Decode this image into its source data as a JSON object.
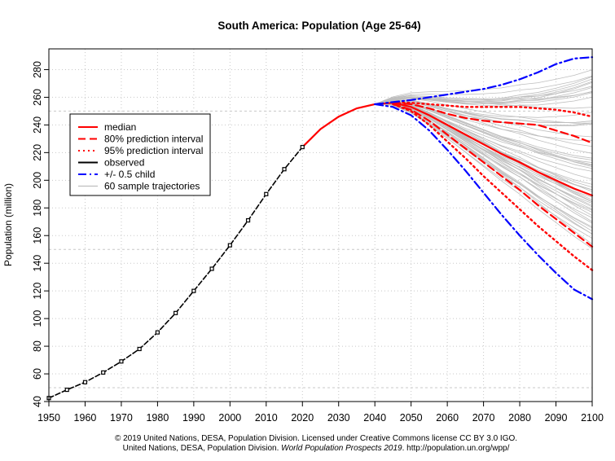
{
  "chart_data": {
    "type": "line",
    "title": "South America: Population (Age 25-64)",
    "xlabel": "",
    "ylabel": "Population (million)",
    "xlim": [
      1950,
      2100
    ],
    "ylim": [
      40,
      295
    ],
    "xticks": [
      1950,
      1960,
      1970,
      1980,
      1990,
      2000,
      2010,
      2020,
      2030,
      2040,
      2050,
      2060,
      2070,
      2080,
      2090,
      2100
    ],
    "yticks": [
      40,
      60,
      80,
      100,
      120,
      140,
      160,
      180,
      200,
      220,
      240,
      260,
      280
    ],
    "grid": true,
    "legend_position": "top-left",
    "legend": [
      {
        "label": "median",
        "color": "#ff0000",
        "dash": "solid"
      },
      {
        "label": "80% prediction interval",
        "color": "#ff0000",
        "dash": "dashed"
      },
      {
        "label": "95% prediction interval",
        "color": "#ff0000",
        "dash": "dotted"
      },
      {
        "label": "observed",
        "color": "#000000",
        "dash": "solid"
      },
      {
        "label": "+/- 0.5 child",
        "color": "#0000ff",
        "dash": "dashdot"
      },
      {
        "label": "60 sample trajectories",
        "color": "#bebebe",
        "dash": "solid"
      }
    ],
    "series": [
      {
        "name": "observed",
        "color": "#000000",
        "x": [
          1950,
          1955,
          1960,
          1965,
          1970,
          1975,
          1980,
          1985,
          1990,
          1995,
          2000,
          2005,
          2010,
          2015,
          2020
        ],
        "values": [
          42.5,
          48.5,
          54,
          61,
          69,
          78,
          90,
          104,
          120,
          136,
          153,
          171,
          190,
          208,
          224
        ]
      },
      {
        "name": "median",
        "color": "#ff0000",
        "x": [
          2020,
          2025,
          2030,
          2035,
          2040,
          2045,
          2050,
          2055,
          2060,
          2065,
          2070,
          2075,
          2080,
          2085,
          2090,
          2095,
          2100
        ],
        "values": [
          224,
          237,
          246,
          252,
          255,
          256,
          253,
          247,
          240,
          233,
          226,
          219,
          213,
          206,
          200,
          194,
          189
        ]
      },
      {
        "name": "80% upper",
        "color": "#ff0000",
        "x": [
          2045,
          2050,
          2055,
          2060,
          2065,
          2070,
          2075,
          2080,
          2085,
          2090,
          2095,
          2100
        ],
        "values": [
          256,
          255,
          252,
          248,
          245,
          243,
          242,
          241,
          240,
          236,
          232,
          227
        ]
      },
      {
        "name": "80% lower",
        "color": "#ff0000",
        "x": [
          2045,
          2050,
          2055,
          2060,
          2065,
          2070,
          2075,
          2080,
          2085,
          2090,
          2095,
          2100
        ],
        "values": [
          255,
          251,
          243,
          233,
          223,
          213,
          203,
          193,
          182,
          172,
          162,
          152
        ]
      },
      {
        "name": "95% upper",
        "color": "#ff0000",
        "x": [
          2045,
          2050,
          2055,
          2060,
          2065,
          2070,
          2075,
          2080,
          2085,
          2090,
          2095,
          2100
        ],
        "values": [
          256,
          256,
          255,
          254,
          253,
          253,
          253,
          253,
          252,
          251,
          249,
          246
        ]
      },
      {
        "name": "95% lower",
        "color": "#ff0000",
        "x": [
          2045,
          2050,
          2055,
          2060,
          2065,
          2070,
          2075,
          2080,
          2085,
          2090,
          2095,
          2100
        ],
        "values": [
          255,
          250,
          240,
          228,
          216,
          203,
          191,
          179,
          167,
          156,
          145,
          135
        ]
      },
      {
        "name": "+0.5 child",
        "color": "#0000ff",
        "x": [
          2040,
          2045,
          2050,
          2055,
          2060,
          2065,
          2070,
          2075,
          2080,
          2085,
          2090,
          2095,
          2100
        ],
        "values": [
          255,
          256.5,
          258,
          260,
          262,
          264,
          266,
          269,
          273,
          278,
          284,
          288,
          289
        ]
      },
      {
        "name": "-0.5 child",
        "color": "#0000ff",
        "x": [
          2040,
          2045,
          2050,
          2055,
          2060,
          2065,
          2070,
          2075,
          2080,
          2085,
          2090,
          2095,
          2100
        ],
        "values": [
          255,
          253,
          247,
          236,
          222,
          207,
          191,
          175,
          160,
          146,
          133,
          121,
          114
        ]
      }
    ],
    "sample_trajectories": {
      "count": 60,
      "color": "#bebebe",
      "x": [
        2020,
        2030,
        2040,
        2050,
        2060,
        2070,
        2080,
        2090,
        2100
      ],
      "endpoints_range": [
        150,
        290
      ]
    }
  },
  "caption": {
    "line1": "© 2019 United Nations, DESA, Population Division. Licensed under Creative Commons license CC BY 3.0 IGO.",
    "line2_prefix": "United Nations, DESA, Population Division. ",
    "line2_italic": "World Population Prospects 2019",
    "line2_suffix": ". http://population.un.org/wpp/"
  }
}
